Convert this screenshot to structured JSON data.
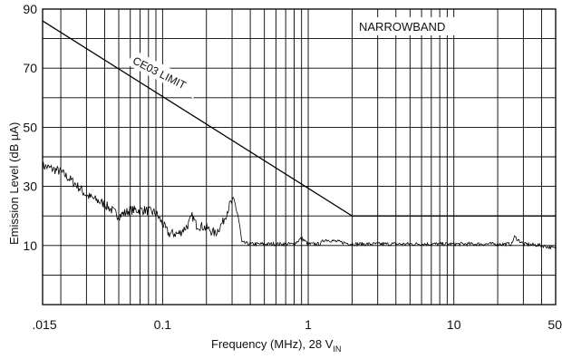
{
  "chart_data": {
    "type": "line",
    "title": "",
    "xlabel": "Frequency (MHz), 28 V",
    "xlabel_subscript": "IN",
    "ylabel": "Emission Level (dB µA)",
    "x_scale": "log",
    "xlim": [
      0.015,
      50
    ],
    "ylim": [
      -10,
      90
    ],
    "grid": true,
    "x_tick_labels": [
      {
        "value": 0.015,
        "label": ".015"
      },
      {
        "value": 0.1,
        "label": "0.1"
      },
      {
        "value": 1,
        "label": "1"
      },
      {
        "value": 10,
        "label": "10"
      },
      {
        "value": 50,
        "label": "50"
      }
    ],
    "y_tick_labels": [
      {
        "value": 10,
        "label": "10"
      },
      {
        "value": 30,
        "label": "30"
      },
      {
        "value": 50,
        "label": "50"
      },
      {
        "value": 70,
        "label": "70"
      },
      {
        "value": 90,
        "label": "90"
      }
    ],
    "annotations": [
      {
        "text": "NARROWBAND"
      },
      {
        "text": "CE03 LIMIT"
      }
    ],
    "series": [
      {
        "name": "CE03 LIMIT",
        "x": [
          0.015,
          2,
          50
        ],
        "y": [
          86,
          20,
          20
        ]
      },
      {
        "name": "",
        "x": [
          0.015,
          0.02,
          0.025,
          0.03,
          0.04,
          0.05,
          0.06,
          0.075,
          0.09,
          0.11,
          0.13,
          0.15,
          0.16,
          0.17,
          0.2,
          0.23,
          0.26,
          0.29,
          0.31,
          0.33,
          0.35,
          0.4,
          0.6,
          0.8,
          0.9,
          1.0,
          1.2,
          1.3,
          2,
          3,
          5,
          8,
          10,
          15,
          20,
          25,
          26,
          30,
          40,
          50
        ],
        "y": [
          37,
          35,
          31,
          27,
          24,
          20,
          22,
          22,
          21,
          14,
          14,
          17,
          20,
          17,
          16,
          14,
          18,
          24,
          25,
          20,
          11,
          10.5,
          10.5,
          10.5,
          12.5,
          10.5,
          10.5,
          12,
          10.5,
          10.5,
          10.5,
          10.5,
          10.5,
          10.5,
          10.5,
          10.5,
          13,
          10.5,
          10,
          9
        ]
      }
    ]
  }
}
